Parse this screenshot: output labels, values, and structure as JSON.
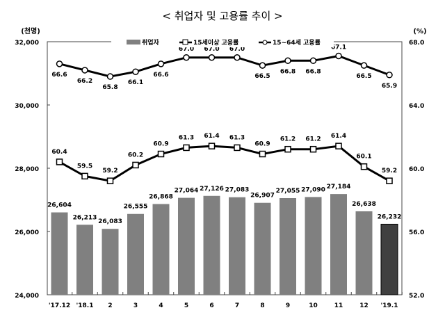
{
  "chart_data": {
    "type": "bar+line",
    "title": "< 취업자 및 고용률 추이 >",
    "left_unit": "(천명)",
    "right_unit": "(%)",
    "categories": [
      "'17.12",
      "'18.1",
      "2",
      "3",
      "4",
      "5",
      "6",
      "7",
      "8",
      "9",
      "10",
      "11",
      "12",
      "'19.1"
    ],
    "left_ylim": [
      24000,
      32000
    ],
    "left_ticks": [
      "24,000",
      "26,000",
      "28,000",
      "30,000",
      "32,000"
    ],
    "right_ylim": [
      52.0,
      68.0
    ],
    "right_ticks": [
      "52.0",
      "56.0",
      "60.0",
      "64.0",
      "68.0"
    ],
    "legend_placement": "top-center",
    "series": [
      {
        "name": "취업자",
        "type": "bar",
        "axis": "left",
        "color": "#808080",
        "highlight_last_color": "#404040",
        "values": [
          26604,
          26213,
          26083,
          26555,
          26868,
          27064,
          27126,
          27083,
          26907,
          27055,
          27090,
          27184,
          26638,
          26232
        ],
        "labels": [
          "26,604",
          "26,213",
          "26,083",
          "26,555",
          "26,868",
          "27,064",
          "27,126",
          "27,083",
          "26,907",
          "27,055",
          "27,090",
          "27,184",
          "26,638",
          "26,232"
        ]
      },
      {
        "name": "15세이상 고용률",
        "type": "line",
        "axis": "right",
        "marker": "square",
        "values": [
          60.4,
          59.5,
          59.2,
          60.2,
          60.9,
          61.3,
          61.4,
          61.3,
          60.9,
          61.2,
          61.2,
          61.4,
          60.1,
          59.2
        ]
      },
      {
        "name": "15~64세 고용률",
        "type": "line",
        "axis": "right",
        "marker": "circle",
        "values": [
          66.6,
          66.2,
          65.8,
          66.1,
          66.6,
          67.0,
          67.0,
          67.0,
          66.5,
          66.8,
          66.8,
          67.1,
          66.5,
          65.9
        ]
      }
    ]
  }
}
